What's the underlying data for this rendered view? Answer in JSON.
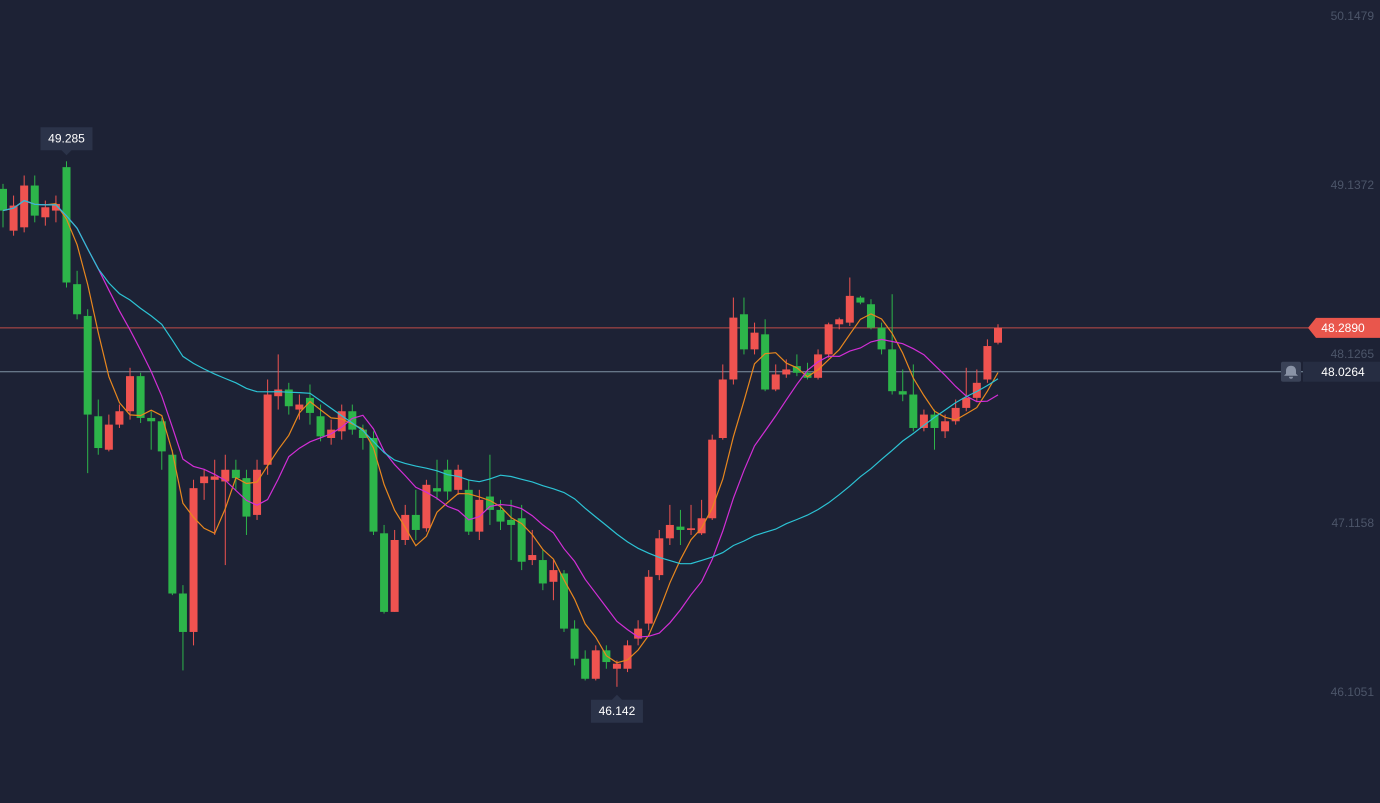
{
  "chart_data": {
    "type": "candlestick",
    "ylim": [
      45.447,
      50.2496
    ],
    "yticks": [
      50.1479,
      49.1372,
      48.1265,
      47.1158,
      46.1051
    ],
    "up_color": "#ef5350",
    "down_color": "#2db54a",
    "open": [
      49.12,
      48.87,
      48.89,
      49.14,
      48.95,
      48.99,
      49.25,
      48.55,
      48.36,
      47.76,
      47.56,
      47.71,
      47.79,
      48.0,
      47.75,
      47.73,
      47.53,
      46.7,
      46.47,
      47.36,
      47.38,
      47.37,
      47.44,
      47.39,
      47.17,
      47.47,
      47.88,
      47.92,
      47.8,
      47.87,
      47.76,
      47.63,
      47.67,
      47.79,
      47.68,
      47.63,
      47.06,
      46.59,
      47.02,
      47.17,
      47.09,
      47.33,
      47.44,
      47.32,
      47.32,
      47.07,
      47.28,
      47.2,
      47.14,
      47.15,
      46.9,
      46.9,
      46.77,
      46.82,
      46.49,
      46.31,
      46.19,
      46.36,
      46.25,
      46.25,
      46.43,
      46.52,
      46.81,
      47.03,
      47.1,
      47.08,
      47.06,
      47.15,
      47.63,
      47.98,
      48.37,
      48.16,
      48.25,
      47.92,
      48.01,
      48.06,
      48.02,
      47.99,
      48.13,
      48.31,
      48.32,
      48.47,
      48.43,
      48.29,
      48.16,
      47.91,
      47.89,
      47.69,
      47.77,
      47.67,
      47.73,
      47.81,
      47.87,
      47.98,
      48.2
    ],
    "high": [
      49.15,
      49.08,
      49.2,
      49.2,
      49.05,
      49.08,
      49.285,
      48.63,
      48.4,
      47.86,
      47.77,
      47.83,
      48.05,
      48.02,
      47.79,
      47.75,
      47.56,
      46.75,
      47.38,
      47.44,
      47.5,
      47.53,
      47.5,
      47.44,
      47.5,
      47.98,
      48.13,
      47.96,
      47.89,
      47.95,
      47.83,
      47.74,
      47.83,
      47.83,
      47.71,
      47.67,
      47.11,
      47.08,
      47.23,
      47.32,
      47.38,
      47.5,
      47.5,
      47.47,
      47.38,
      47.32,
      47.53,
      47.26,
      47.26,
      47.23,
      47.08,
      46.96,
      46.9,
      46.84,
      46.54,
      46.36,
      46.39,
      46.39,
      46.3,
      46.42,
      46.54,
      46.84,
      47.08,
      47.23,
      47.2,
      47.23,
      47.26,
      47.65,
      48.07,
      48.47,
      48.47,
      48.32,
      48.34,
      48.07,
      48.1,
      48.13,
      48.08,
      48.16,
      48.32,
      48.35,
      48.59,
      48.48,
      48.46,
      48.32,
      48.49,
      48.04,
      48.07,
      47.8,
      47.8,
      47.77,
      47.86,
      48.05,
      48.04,
      48.22,
      48.31
    ],
    "low": [
      48.89,
      48.84,
      48.86,
      48.92,
      48.9,
      48.92,
      48.53,
      48.34,
      47.42,
      47.53,
      47.55,
      47.69,
      47.74,
      47.72,
      47.56,
      47.44,
      46.69,
      46.24,
      46.39,
      47.26,
      47.05,
      46.87,
      47.32,
      47.05,
      47.14,
      47.41,
      47.8,
      47.77,
      47.74,
      47.71,
      47.61,
      47.59,
      47.62,
      47.65,
      47.56,
      47.05,
      46.58,
      46.59,
      46.99,
      47.02,
      47.07,
      47.26,
      47.26,
      47.29,
      47.05,
      47.02,
      47.11,
      47.08,
      46.9,
      46.84,
      46.87,
      46.72,
      46.66,
      46.47,
      46.27,
      46.18,
      46.18,
      46.25,
      46.142,
      46.23,
      46.39,
      46.48,
      46.78,
      46.99,
      46.99,
      47.05,
      47.05,
      47.14,
      47.62,
      47.95,
      48.13,
      48.13,
      47.91,
      47.91,
      47.99,
      48.0,
      47.98,
      47.98,
      48.11,
      48.28,
      48.3,
      48.43,
      48.28,
      48.13,
      47.89,
      47.85,
      47.67,
      47.67,
      47.56,
      47.63,
      47.71,
      47.79,
      47.85,
      47.96,
      48.19
    ],
    "close": [
      48.99,
      49.02,
      49.14,
      48.96,
      49.01,
      49.03,
      48.56,
      48.37,
      47.77,
      47.57,
      47.71,
      47.79,
      48.0,
      47.75,
      47.73,
      47.55,
      46.7,
      46.47,
      47.33,
      47.4,
      47.4,
      47.44,
      47.39,
      47.16,
      47.44,
      47.89,
      47.92,
      47.82,
      47.83,
      47.78,
      47.64,
      47.68,
      47.79,
      47.68,
      47.63,
      47.07,
      46.59,
      47.02,
      47.17,
      47.08,
      47.35,
      47.31,
      47.31,
      47.44,
      47.07,
      47.26,
      47.2,
      47.13,
      47.11,
      46.89,
      46.93,
      46.76,
      46.84,
      46.49,
      46.31,
      46.19,
      46.36,
      46.29,
      46.28,
      46.39,
      46.49,
      46.8,
      47.03,
      47.11,
      47.08,
      47.09,
      47.15,
      47.62,
      47.98,
      48.35,
      48.16,
      48.26,
      47.92,
      48.01,
      48.04,
      48.02,
      47.99,
      48.13,
      48.31,
      48.34,
      48.48,
      48.44,
      48.29,
      48.16,
      47.91,
      47.89,
      47.69,
      47.77,
      47.69,
      47.73,
      47.81,
      47.87,
      47.96,
      48.18,
      48.289
    ],
    "moving_averages": [
      {
        "period": 5,
        "color": "#e8871e"
      },
      {
        "period": 10,
        "color": "#d22ed6"
      },
      {
        "period": 30,
        "color": "#2cc3d4"
      }
    ],
    "annotations": {
      "high": 49.285,
      "low": 46.142
    },
    "last_price": {
      "value": 48.289,
      "label": "48.2890",
      "color": "#e9564c"
    },
    "alert_price": {
      "value": 48.0264,
      "label": "48.0264",
      "color": "#8fa6b8"
    }
  }
}
